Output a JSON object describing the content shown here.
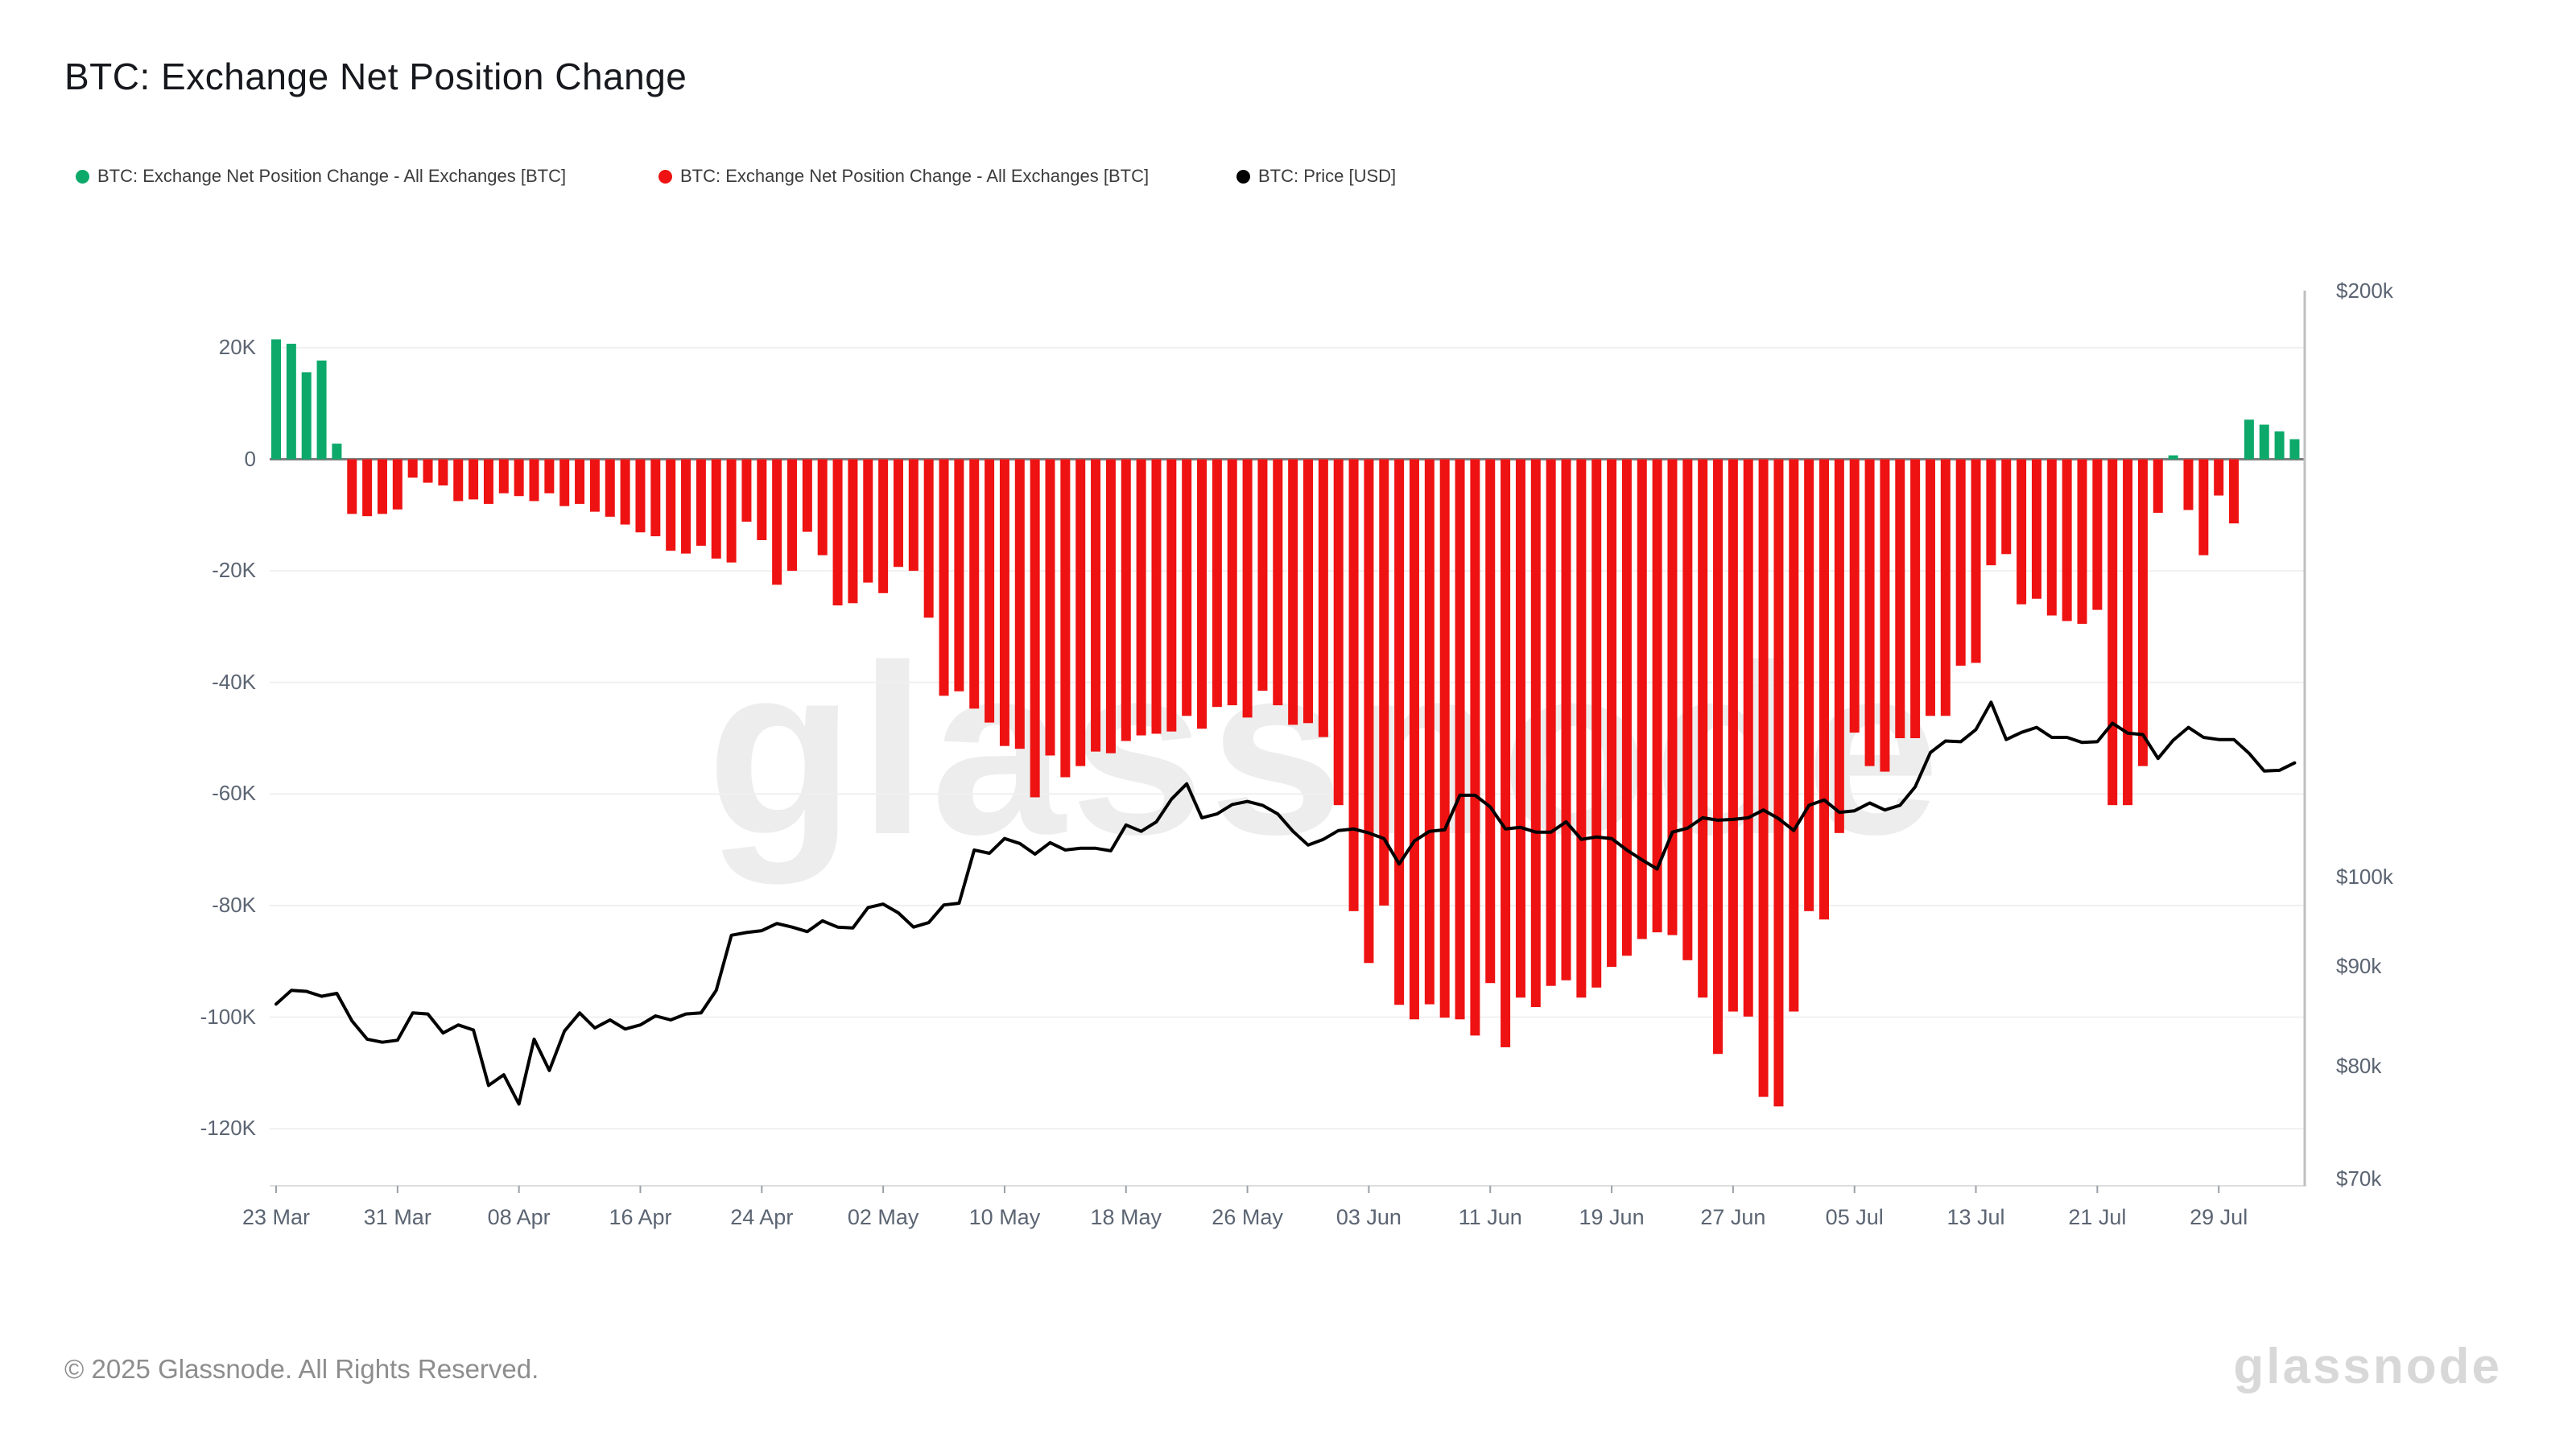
{
  "title": "BTC: Exchange Net Position Change",
  "watermark": "glassnode",
  "footer": "© 2025 Glassnode. All Rights Reserved.",
  "brand": "glassnode",
  "colors": {
    "positive_bar": "#0CA96A",
    "negative_bar": "#EE1212",
    "price_line": "#000000",
    "grid": "#f0f0f0",
    "zero_line": "#7d7d7d",
    "axis_line": "#bfbfbf",
    "tick_text": "#5b6472"
  },
  "legend": {
    "items": [
      {
        "label": "BTC: Exchange Net Position Change - All Exchanges [BTC]",
        "color": "#0CA96A"
      },
      {
        "label": "BTC: Exchange Net Position Change - All Exchanges [BTC]",
        "color": "#EE1212"
      },
      {
        "label": "BTC: Price [USD]",
        "color": "#000000"
      }
    ]
  },
  "chart_data": {
    "type": "bar",
    "title": "BTC: Exchange Net Position Change",
    "start_date": "2025-03-23",
    "x_tick_labels": [
      "23 Mar",
      "31 Mar",
      "08 Apr",
      "16 Apr",
      "24 Apr",
      "02 May",
      "10 May",
      "18 May",
      "26 May",
      "03 Jun",
      "11 Jun",
      "19 Jun",
      "27 Jun",
      "05 Jul",
      "13 Jul",
      "21 Jul",
      "29 Jul"
    ],
    "x_tick_day_step": 8,
    "left_axis": {
      "unit": "K BTC",
      "tick_labels": [
        "20K",
        "0",
        "-20K",
        "-40K",
        "-60K",
        "-80K",
        "-100K",
        "-120K"
      ],
      "tick_values": [
        20,
        0,
        -20,
        -40,
        -60,
        -80,
        -100,
        -120
      ],
      "range": [
        -130,
        30
      ],
      "grid": true
    },
    "right_axis": {
      "unit": "USD",
      "scale": "log",
      "tick_labels": [
        "$200k",
        "$100k",
        "$90k",
        "$80k",
        "$70k"
      ],
      "tick_values": [
        200,
        100,
        90,
        80,
        70
      ]
    },
    "series": [
      {
        "name": "BTC: Exchange Net Position Change - All Exchanges [BTC]",
        "type": "bar",
        "unit": "K BTC",
        "values": [
          21.5,
          20.7,
          15.6,
          17.7,
          2.8,
          -9.8,
          -10.2,
          -9.8,
          -9.0,
          -3.3,
          -4.2,
          -4.7,
          -7.5,
          -7.2,
          -8.0,
          -6.1,
          -6.6,
          -7.5,
          -6.1,
          -8.4,
          -8.0,
          -9.4,
          -10.3,
          -11.7,
          -13.1,
          -13.8,
          -16.4,
          -16.9,
          -15.5,
          -17.8,
          -18.5,
          -11.2,
          -14.5,
          -22.5,
          -20.0,
          -13.0,
          -17.2,
          -26.2,
          -25.8,
          -22.1,
          -24.0,
          -19.3,
          -20.0,
          -28.4,
          -42.4,
          -41.6,
          -44.7,
          -47.2,
          -51.4,
          -51.9,
          -60.6,
          -53.1,
          -57.0,
          -55.0,
          -52.4,
          -52.7,
          -50.5,
          -49.5,
          -49.2,
          -48.8,
          -46.0,
          -48.3,
          -44.4,
          -44.1,
          -46.3,
          -41.5,
          -44.1,
          -47.6,
          -47.3,
          -49.8,
          -62.0,
          -81.0,
          -90.3,
          -80.0,
          -97.8,
          -100.4,
          -97.7,
          -100.1,
          -100.4,
          -103.3,
          -93.9,
          -105.4,
          -96.5,
          -98.2,
          -94.4,
          -93.4,
          -96.5,
          -94.7,
          -91.0,
          -89.0,
          -86.0,
          -84.8,
          -85.3,
          -89.8,
          -96.5,
          -106.6,
          -99.0,
          -99.9,
          -114.3,
          -116.0,
          -99.0,
          -81.0,
          -82.5,
          -67.0,
          -49.0,
          -55.0,
          -56.0,
          -50.0,
          -50.0,
          -46.0,
          -46.0,
          -37.0,
          -36.5,
          -19.0,
          -17.0,
          -26.0,
          -25.0,
          -28.0,
          -29.0,
          -29.5,
          -27.0,
          -62.0,
          -62.0,
          -55.0,
          -9.6,
          0.7,
          -9.1,
          -17.2,
          -6.5,
          -11.5,
          7.1,
          6.2,
          5.0,
          3.6
        ]
      },
      {
        "name": "BTC: Price [USD]",
        "type": "line",
        "unit": "k USD",
        "values": [
          86.1,
          87.5,
          87.4,
          86.9,
          87.2,
          84.4,
          82.6,
          82.3,
          82.5,
          85.2,
          85.1,
          83.2,
          84.0,
          83.5,
          78.2,
          79.2,
          76.5,
          82.6,
          79.6,
          83.4,
          85.2,
          83.7,
          84.5,
          83.6,
          84.0,
          84.9,
          84.5,
          85.1,
          85.2,
          87.5,
          93.4,
          93.7,
          93.9,
          94.7,
          94.3,
          93.8,
          95.0,
          94.3,
          94.2,
          96.5,
          96.9,
          95.9,
          94.3,
          94.8,
          96.8,
          97.0,
          103.3,
          102.9,
          104.7,
          104.1,
          102.8,
          104.2,
          103.3,
          103.5,
          103.5,
          103.2,
          106.4,
          105.6,
          106.8,
          109.7,
          111.7,
          107.3,
          107.8,
          109.0,
          109.4,
          108.9,
          107.8,
          105.6,
          103.9,
          104.6,
          105.7,
          105.9,
          105.4,
          104.7,
          101.6,
          104.4,
          105.6,
          105.8,
          110.2,
          110.2,
          108.7,
          105.9,
          106.1,
          105.5,
          105.5,
          106.8,
          104.6,
          104.9,
          104.7,
          103.3,
          102.1,
          101.0,
          105.5,
          106.0,
          107.3,
          107.0,
          107.1,
          107.3,
          108.3,
          107.2,
          105.7,
          108.9,
          109.6,
          108.0,
          108.2,
          109.2,
          108.3,
          108.9,
          111.3,
          115.9,
          117.5,
          117.4,
          119.1,
          123.0,
          117.7,
          118.7,
          119.4,
          118.0,
          118.0,
          117.3,
          117.4,
          120.0,
          118.6,
          118.4,
          115.1,
          117.6,
          119.4,
          118.0,
          117.7,
          117.7,
          115.8,
          113.4,
          113.5,
          114.5
        ]
      }
    ]
  }
}
